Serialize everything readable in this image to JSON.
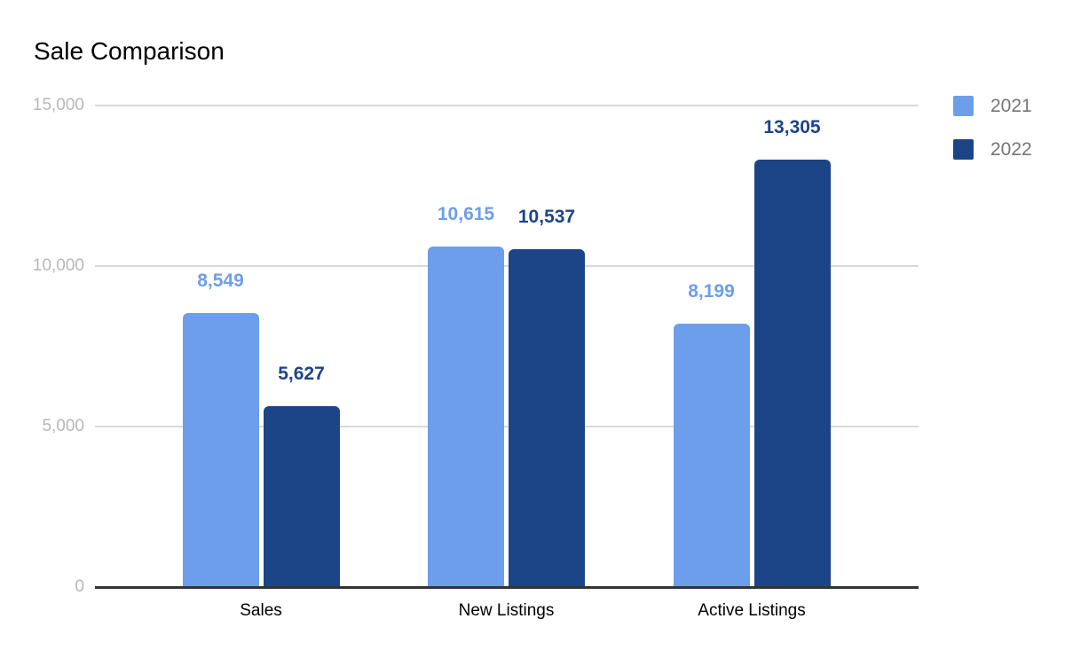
{
  "chart_data": {
    "type": "bar",
    "title": "Sale Comparison",
    "categories": [
      "Sales",
      "New Listings",
      "Active Listings"
    ],
    "series": [
      {
        "name": "2021",
        "color": "#6d9eeb",
        "values": [
          8549,
          10615,
          8199
        ],
        "labels": [
          "8,549",
          "10,615",
          "8,199"
        ]
      },
      {
        "name": "2022",
        "color": "#1c4587",
        "values": [
          5627,
          10537,
          13305
        ],
        "labels": [
          "5,627",
          "10,537",
          "13,305"
        ]
      }
    ],
    "ylim": [
      0,
      15000
    ],
    "yticks": [
      {
        "value": 0,
        "label": "0"
      },
      {
        "value": 5000,
        "label": "5,000"
      },
      {
        "value": 10000,
        "label": "10,000"
      },
      {
        "value": 15000,
        "label": "15,000"
      }
    ],
    "grid": true,
    "legend_position": "right",
    "colors": {
      "gridline": "#d9d9d9",
      "axis_line": "#333333",
      "tick_label": "#b7b7b7",
      "category_label": "#000000",
      "legend_label": "#757575",
      "title": "#000000",
      "background": "#ffffff"
    }
  }
}
